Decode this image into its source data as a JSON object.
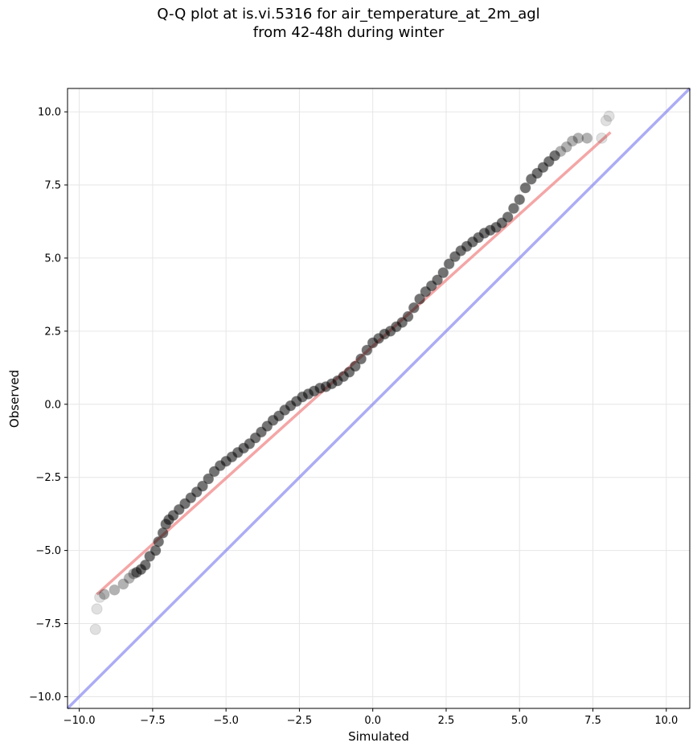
{
  "chart_data": {
    "type": "scatter",
    "title_line1": "Q-Q plot at is.vi.5316 for air_temperature_at_2m_agl",
    "title_line2": "from 42-48h during winter",
    "xlabel": "Simulated",
    "ylabel": "Observed",
    "xlim": [
      -10.4,
      10.8
    ],
    "ylim": [
      -10.4,
      10.8
    ],
    "xticks": [
      -10.0,
      -7.5,
      -5.0,
      -2.5,
      0.0,
      2.5,
      5.0,
      7.5,
      10.0
    ],
    "yticks": [
      -10.0,
      -7.5,
      -5.0,
      -2.5,
      0.0,
      2.5,
      5.0,
      7.5,
      10.0
    ],
    "xtick_labels": [
      "−10.0",
      "−7.5",
      "−5.0",
      "−2.5",
      "0.0",
      "2.5",
      "5.0",
      "7.5",
      "10.0"
    ],
    "ytick_labels": [
      "−10.0",
      "−7.5",
      "−5.0",
      "−2.5",
      "0.0",
      "2.5",
      "5.0",
      "7.5",
      "10.0"
    ],
    "grid": true,
    "colors": {
      "points": "#000000",
      "fit_line": "#f08080",
      "identity_line": "#8080f0"
    },
    "identity_line": {
      "x": [
        -10.4,
        10.8
      ],
      "y": [
        -10.4,
        10.8
      ]
    },
    "fit_line": {
      "x": [
        -9.4,
        8.1
      ],
      "y": [
        -6.5,
        9.3
      ]
    },
    "series": [
      {
        "x": [
          -9.45,
          -9.4,
          -9.3,
          -9.15,
          -8.8,
          -8.5,
          -8.3,
          -8.15,
          -8.05,
          -7.9,
          -7.75,
          -7.6,
          -7.4,
          -7.3,
          -7.15,
          -7.05,
          -6.95,
          -6.8,
          -6.6,
          -6.4,
          -6.2,
          -6.0,
          -5.8,
          -5.6,
          -5.4,
          -5.2,
          -5.0,
          -4.8,
          -4.6,
          -4.4,
          -4.2,
          -4.0,
          -3.8,
          -3.6,
          -3.4,
          -3.2,
          -3.0,
          -2.8,
          -2.6,
          -2.4,
          -2.2,
          -2.0,
          -1.8,
          -1.6,
          -1.4,
          -1.2,
          -1.0,
          -0.8,
          -0.6,
          -0.4,
          -0.2,
          0.0,
          0.2,
          0.4,
          0.6,
          0.8,
          1.0,
          1.2,
          1.4,
          1.6,
          1.8,
          2.0,
          2.2,
          2.4,
          2.6,
          2.8,
          3.0,
          3.2,
          3.4,
          3.6,
          3.8,
          4.0,
          4.2,
          4.4,
          4.6,
          4.8,
          5.0,
          5.2,
          5.4,
          5.6,
          5.8,
          6.0,
          6.2,
          6.4,
          6.6,
          6.8,
          7.0,
          7.3,
          7.8,
          7.95,
          8.05
        ],
        "y": [
          -7.7,
          -7.0,
          -6.6,
          -6.5,
          -6.35,
          -6.15,
          -5.95,
          -5.8,
          -5.75,
          -5.65,
          -5.5,
          -5.2,
          -5.0,
          -4.7,
          -4.4,
          -4.1,
          -3.95,
          -3.8,
          -3.6,
          -3.4,
          -3.2,
          -3.0,
          -2.8,
          -2.55,
          -2.3,
          -2.1,
          -1.95,
          -1.8,
          -1.65,
          -1.5,
          -1.35,
          -1.15,
          -0.95,
          -0.75,
          -0.55,
          -0.4,
          -0.2,
          -0.05,
          0.1,
          0.25,
          0.35,
          0.45,
          0.55,
          0.6,
          0.7,
          0.8,
          0.95,
          1.1,
          1.3,
          1.55,
          1.85,
          2.1,
          2.25,
          2.4,
          2.5,
          2.65,
          2.8,
          3.0,
          3.3,
          3.6,
          3.85,
          4.05,
          4.25,
          4.5,
          4.8,
          5.05,
          5.25,
          5.4,
          5.55,
          5.7,
          5.85,
          5.95,
          6.05,
          6.2,
          6.4,
          6.7,
          7.0,
          7.4,
          7.7,
          7.9,
          8.1,
          8.3,
          8.5,
          8.65,
          8.8,
          9.0,
          9.1,
          9.1,
          9.1,
          9.7,
          9.85
        ]
      }
    ]
  }
}
